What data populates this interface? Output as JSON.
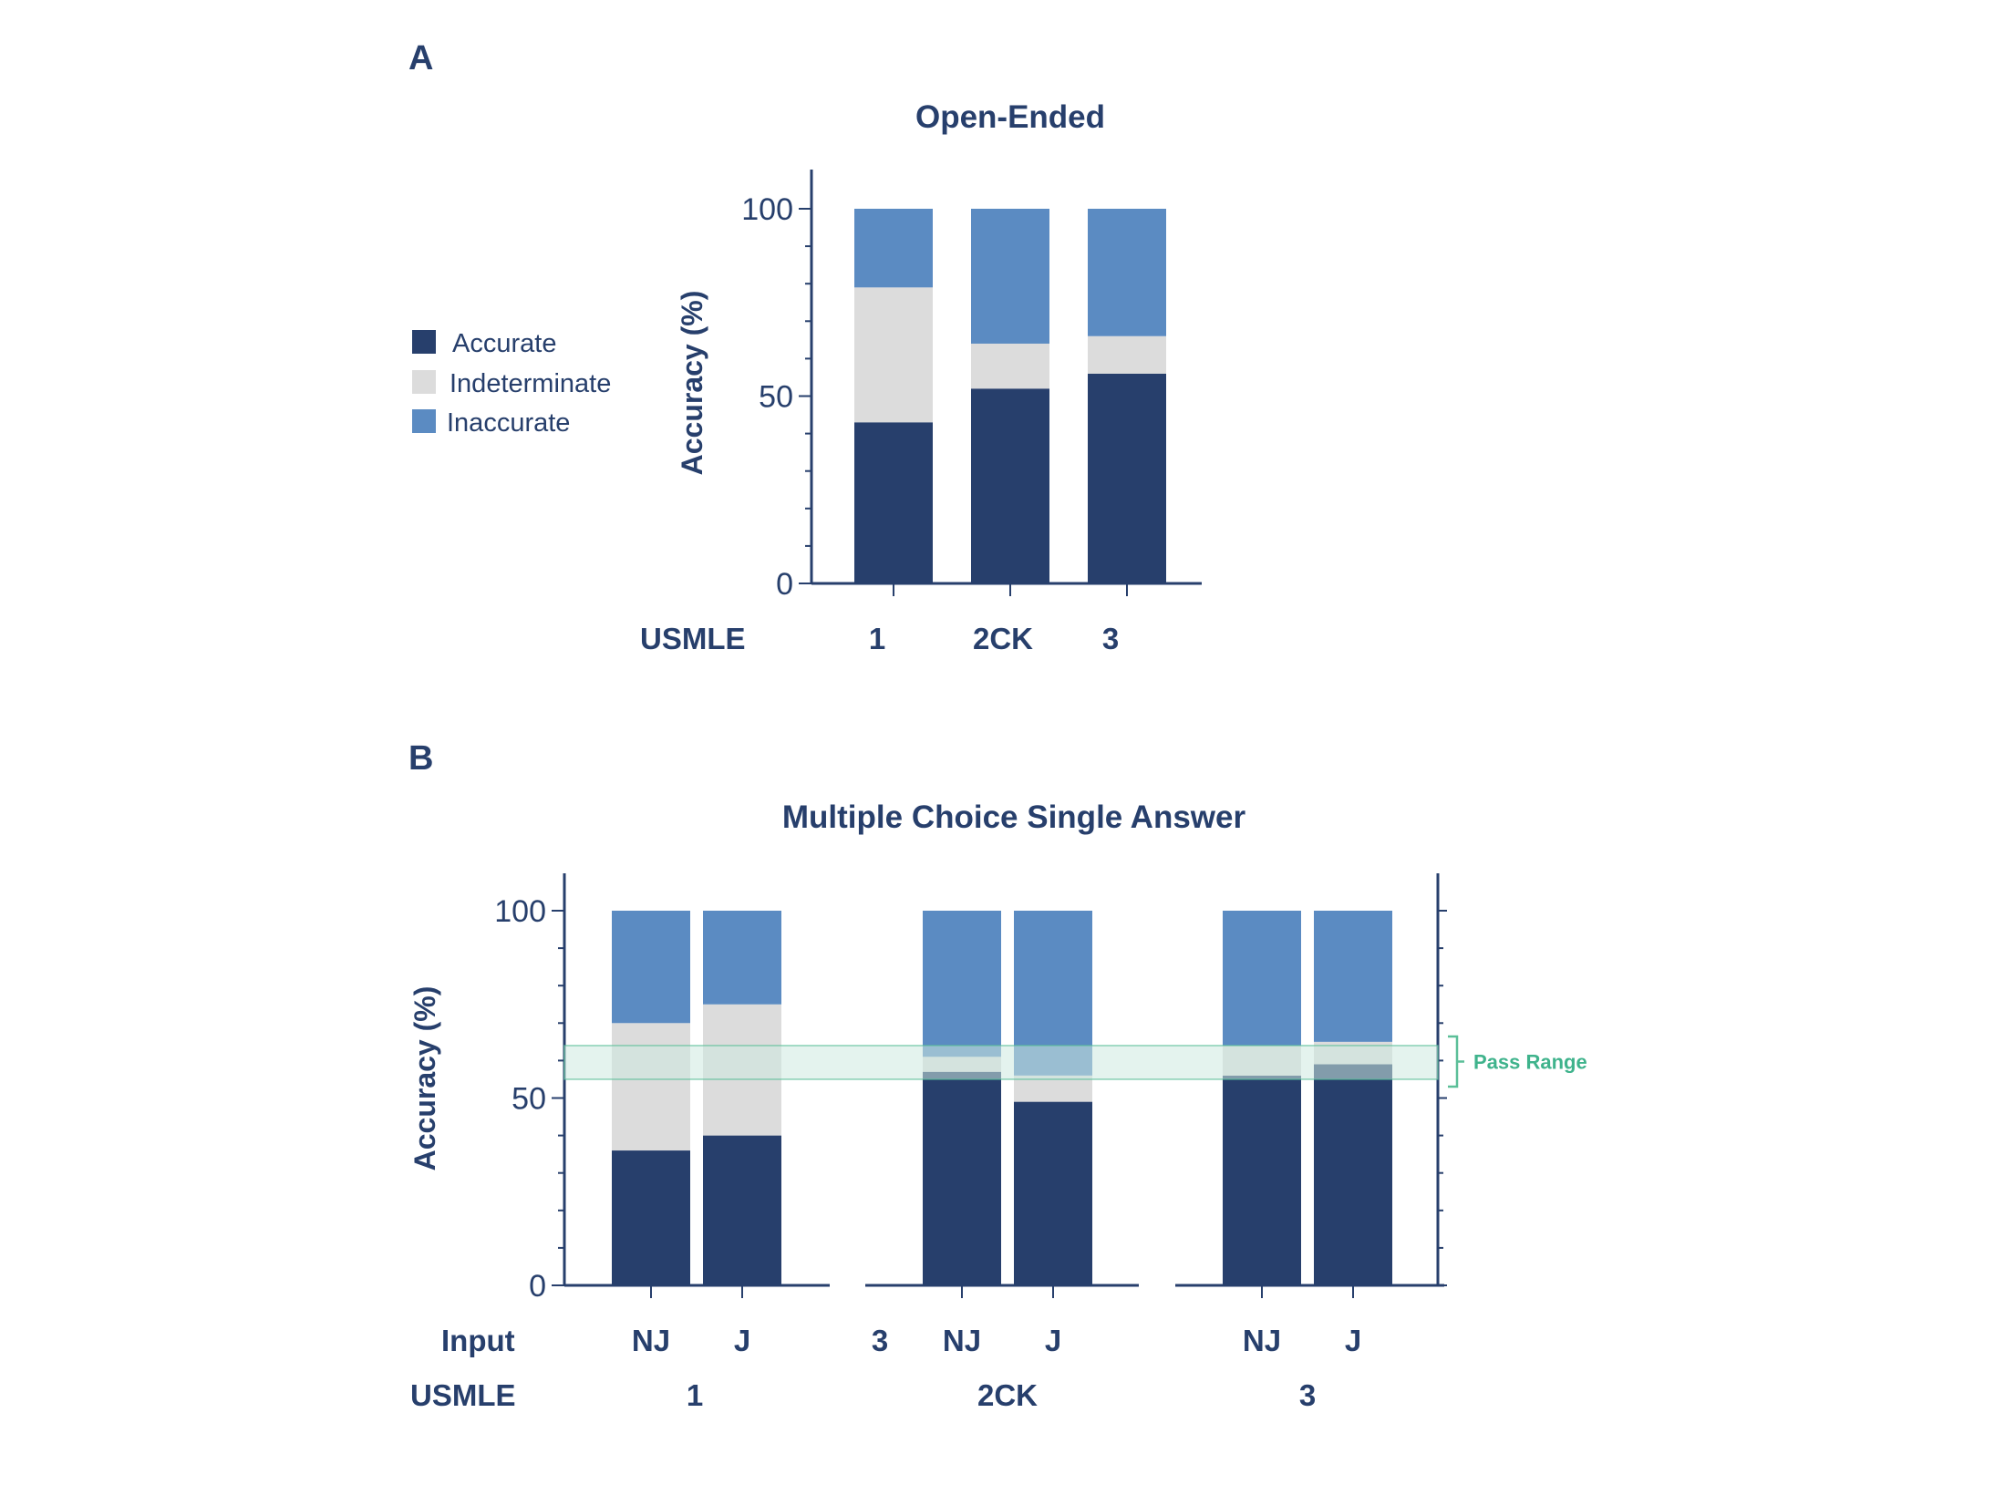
{
  "colors": {
    "accurate": "#273f6c",
    "indeterminate": "#dcdcdc",
    "inaccurate": "#5b8bc2",
    "axis": "#273f6c",
    "pass_band": "#cde9e0",
    "pass_edge": "#5bbf98",
    "pass_text": "#3fb38c"
  },
  "legend": {
    "items": [
      {
        "label": "Accurate",
        "color_key": "accurate"
      },
      {
        "label": "Indeterminate",
        "color_key": "indeterminate"
      },
      {
        "label": "Inaccurate",
        "color_key": "inaccurate"
      }
    ]
  },
  "chart_data": [
    {
      "panel_letter": "A",
      "type": "bar",
      "stacked": true,
      "title": "Open-Ended",
      "ylabel": "Accuracy (%)",
      "ylim": [
        0,
        100
      ],
      "yticks": [
        0,
        50,
        100
      ],
      "row_label": "USMLE",
      "categories": [
        "1",
        "2CK",
        "3"
      ],
      "series": [
        {
          "name": "Accurate",
          "values": [
            43,
            52,
            56
          ]
        },
        {
          "name": "Indeterminate",
          "values": [
            36,
            12,
            10
          ]
        },
        {
          "name": "Inaccurate",
          "values": [
            21,
            36,
            34
          ]
        }
      ]
    },
    {
      "panel_letter": "B",
      "type": "bar",
      "stacked": true,
      "title": "Multiple Choice Single Answer",
      "ylabel": "Accuracy (%)",
      "ylim": [
        0,
        100
      ],
      "yticks": [
        0,
        50,
        100
      ],
      "row_labels": [
        "Input",
        "USMLE"
      ],
      "groups": [
        {
          "label": "1",
          "extra_input_label": "",
          "bars": [
            "NJ",
            "J"
          ]
        },
        {
          "label": "2CK",
          "extra_input_label": "3",
          "bars": [
            "NJ",
            "J"
          ]
        },
        {
          "label": "3",
          "extra_input_label": "",
          "bars": [
            "NJ",
            "J"
          ]
        }
      ],
      "series": [
        {
          "name": "Accurate",
          "values": [
            36,
            40,
            57,
            49,
            56,
            59
          ]
        },
        {
          "name": "Indeterminate",
          "values": [
            34,
            35,
            4,
            7,
            8,
            6
          ]
        },
        {
          "name": "Inaccurate",
          "values": [
            30,
            25,
            39,
            44,
            36,
            35
          ]
        }
      ],
      "pass_range": {
        "label": "Pass Range",
        "low": 55,
        "high": 64
      }
    }
  ]
}
